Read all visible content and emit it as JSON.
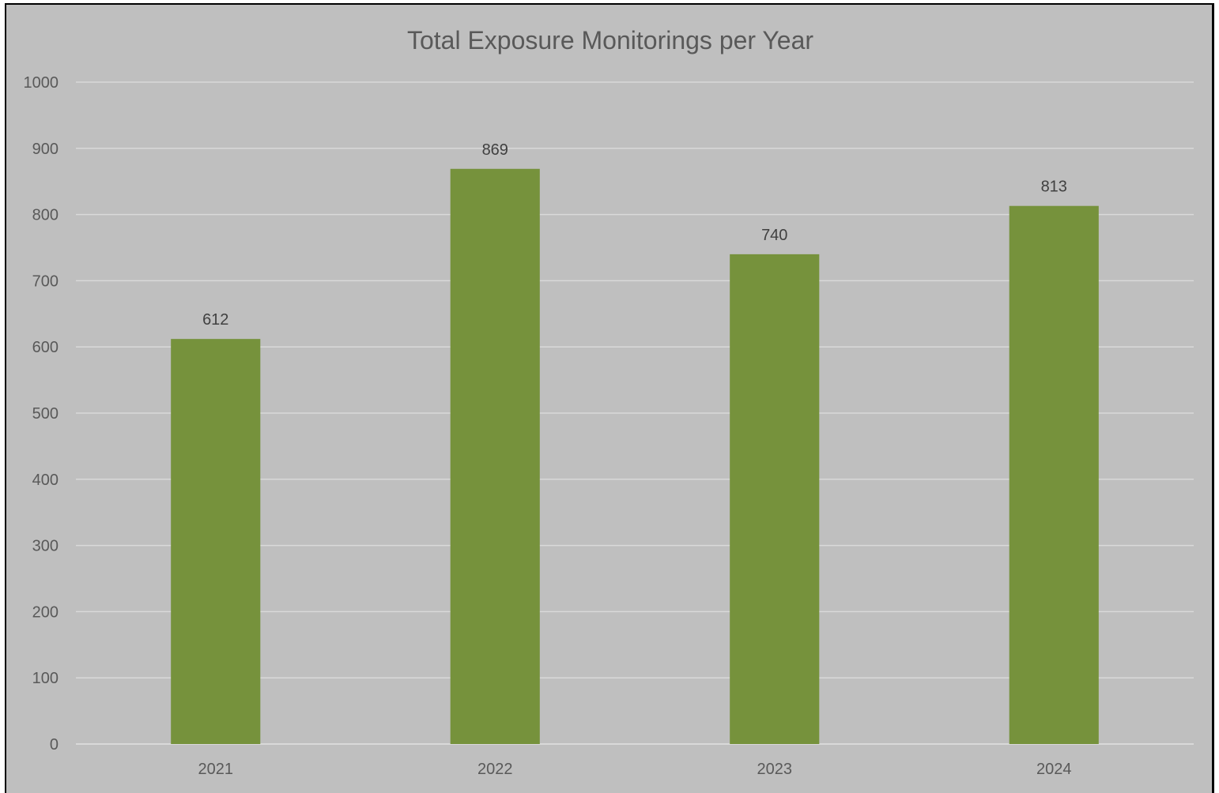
{
  "colors": {
    "background": "#bfbfbf",
    "bar": "#76923c",
    "gridline": "#d9d9d9",
    "text": "#595959"
  },
  "chart_data": {
    "type": "bar",
    "title": "Total Exposure Monitorings per Year",
    "xlabel": "",
    "ylabel": "",
    "categories": [
      "2021",
      "2022",
      "2023",
      "2024"
    ],
    "values": [
      612,
      869,
      740,
      813
    ],
    "data_labels": [
      "612",
      "869",
      "740",
      "813"
    ],
    "ylim": [
      0,
      1000
    ],
    "yticks": [
      0,
      100,
      200,
      300,
      400,
      500,
      600,
      700,
      800,
      900,
      1000
    ],
    "ytick_labels": [
      "0",
      "100",
      "200",
      "300",
      "400",
      "500",
      "600",
      "700",
      "800",
      "900",
      "1000"
    ],
    "grid": true,
    "legend": "none"
  }
}
